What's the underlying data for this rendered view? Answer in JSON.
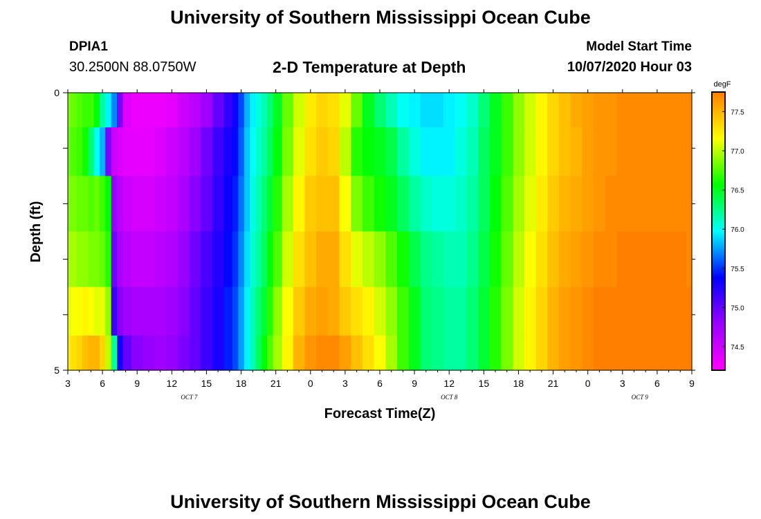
{
  "header": {
    "title": "University of Southern Mississippi Ocean Cube",
    "station": "DPIA1",
    "coords": "30.2500N 88.0750W",
    "subtitle": "2-D Temperature at Depth",
    "model_start_label": "Model Start Time",
    "model_start_value": "10/07/2020 Hour 03"
  },
  "footer": {
    "title": "University of Southern Mississippi Ocean Cube"
  },
  "chart_data": {
    "type": "heatmap",
    "title": "2-D Temperature at Depth",
    "xlabel": "Forecast Time(Z)",
    "ylabel": "Depth (ft)",
    "x_hours_range": [
      0,
      54
    ],
    "x_tick_labels": [
      "3",
      "6",
      "9",
      "12",
      "15",
      "18",
      "21",
      "0",
      "3",
      "6",
      "9",
      "12",
      "15",
      "18",
      "21",
      "0",
      "3",
      "6",
      "9"
    ],
    "day_labels": [
      {
        "label": "OCT 7",
        "hour": 10.5
      },
      {
        "label": "OCT 8",
        "hour": 33
      },
      {
        "label": "OCT 9",
        "hour": 49.5
      }
    ],
    "y_tick_labels": [
      {
        "depth": 0,
        "label": "0"
      },
      {
        "depth": 1,
        "label": ""
      },
      {
        "depth": 2,
        "label": ""
      },
      {
        "depth": 3,
        "label": ""
      },
      {
        "depth": 4,
        "label": ""
      },
      {
        "depth": 5,
        "label": "5"
      }
    ],
    "ylim": [
      0,
      5
    ],
    "colorbar": {
      "unit": "degF",
      "min": 74.2,
      "max": 77.75,
      "ticks": [
        "74.5",
        "75.0",
        "75.5",
        "76.0",
        "76.5",
        "77.0",
        "77.5"
      ],
      "colors": [
        "#ff00ff",
        "#9900ff",
        "#0000ff",
        "#00ffff",
        "#00ff00",
        "#ffff00",
        "#ff7f00"
      ]
    },
    "x_hours": [
      0,
      0.5,
      1,
      1.5,
      2,
      2.5,
      3,
      3.5,
      4,
      4.5,
      5,
      6,
      7,
      8,
      9,
      10,
      11,
      12,
      13,
      14,
      14.5,
      15,
      15.5,
      16,
      16.5,
      17,
      17.5,
      18,
      19,
      20,
      21,
      22,
      23,
      24,
      25,
      26,
      27,
      28,
      29,
      30,
      31,
      32,
      33,
      34,
      35,
      36,
      37,
      38,
      39,
      40,
      41,
      42,
      43,
      44,
      45,
      46,
      47,
      48,
      49,
      50,
      51,
      52,
      53,
      54
    ],
    "depth_layers": [
      {
        "depth": 0.25,
        "values": [
          76.85,
          76.8,
          76.75,
          76.7,
          76.7,
          76.55,
          76.2,
          75.95,
          75.7,
          74.9,
          74.4,
          74.3,
          74.3,
          74.3,
          74.35,
          74.5,
          74.6,
          74.75,
          75.0,
          75.2,
          75.35,
          75.55,
          75.8,
          75.95,
          76.05,
          76.15,
          76.3,
          76.5,
          76.8,
          77.05,
          77.25,
          77.35,
          77.3,
          77.1,
          76.8,
          76.5,
          76.3,
          76.15,
          76.0,
          75.95,
          75.9,
          75.9,
          75.95,
          76.0,
          76.1,
          76.3,
          76.5,
          76.7,
          76.9,
          77.05,
          77.2,
          77.35,
          77.45,
          77.55,
          77.6,
          77.65,
          77.65,
          77.7,
          77.7,
          77.7,
          77.7,
          77.7,
          77.7,
          77.7
        ]
      },
      {
        "depth": 1.0,
        "values": [
          76.8,
          76.75,
          76.7,
          76.6,
          76.3,
          76.0,
          75.8,
          74.9,
          74.5,
          74.4,
          74.35,
          74.35,
          74.35,
          74.4,
          74.5,
          74.6,
          74.75,
          74.95,
          75.15,
          75.3,
          75.4,
          75.6,
          75.85,
          76.0,
          76.1,
          76.2,
          76.35,
          76.55,
          76.85,
          77.1,
          77.3,
          77.4,
          77.35,
          77.0,
          76.65,
          76.55,
          76.5,
          76.4,
          76.2,
          76.05,
          75.95,
          75.95,
          75.95,
          76.05,
          76.15,
          76.35,
          76.5,
          76.7,
          76.9,
          77.05,
          77.2,
          77.35,
          77.45,
          77.5,
          77.6,
          77.65,
          77.65,
          77.7,
          77.7,
          77.7,
          77.7,
          77.7,
          77.7,
          77.7
        ]
      },
      {
        "depth": 2.0,
        "values": [
          76.85,
          76.85,
          76.8,
          76.8,
          76.75,
          76.8,
          76.7,
          76.55,
          74.8,
          74.6,
          74.5,
          74.45,
          74.45,
          74.5,
          74.55,
          74.7,
          74.85,
          75.0,
          75.2,
          75.35,
          75.45,
          75.65,
          75.85,
          76.05,
          76.15,
          76.3,
          76.45,
          76.65,
          76.95,
          77.2,
          77.4,
          77.45,
          77.45,
          77.15,
          76.85,
          76.7,
          76.6,
          76.5,
          76.35,
          76.2,
          76.1,
          76.05,
          76.05,
          76.1,
          76.2,
          76.35,
          76.55,
          76.75,
          76.95,
          77.1,
          77.25,
          77.4,
          77.5,
          77.55,
          77.6,
          77.65,
          77.7,
          77.7,
          77.7,
          77.7,
          77.7,
          77.7,
          77.7,
          77.7
        ]
      },
      {
        "depth": 3.0,
        "values": [
          76.95,
          76.95,
          76.9,
          76.9,
          76.85,
          76.85,
          76.8,
          76.65,
          74.95,
          74.7,
          74.6,
          74.55,
          74.55,
          74.6,
          74.65,
          74.8,
          74.95,
          75.1,
          75.25,
          75.4,
          75.5,
          75.7,
          75.9,
          76.1,
          76.2,
          76.35,
          76.55,
          76.75,
          77.05,
          77.3,
          77.45,
          77.55,
          77.55,
          77.3,
          77.1,
          77.0,
          76.9,
          76.75,
          76.6,
          76.4,
          76.25,
          76.2,
          76.15,
          76.15,
          76.25,
          76.4,
          76.6,
          76.8,
          77.0,
          77.15,
          77.3,
          77.45,
          77.55,
          77.6,
          77.65,
          77.7,
          77.7,
          77.75,
          77.75,
          77.8,
          77.8,
          77.8,
          77.75,
          77.7
        ]
      },
      {
        "depth": 4.0,
        "values": [
          77.1,
          77.15,
          77.15,
          77.2,
          77.15,
          77.1,
          77.1,
          76.9,
          75.15,
          74.85,
          74.75,
          74.7,
          74.7,
          74.7,
          74.75,
          74.85,
          75.0,
          75.15,
          75.3,
          75.45,
          75.55,
          75.75,
          75.95,
          76.15,
          76.3,
          76.45,
          76.65,
          76.9,
          77.15,
          77.4,
          77.55,
          77.6,
          77.55,
          77.4,
          77.3,
          77.2,
          77.05,
          76.9,
          76.7,
          76.5,
          76.3,
          76.25,
          76.2,
          76.2,
          76.3,
          76.45,
          76.65,
          76.85,
          77.05,
          77.2,
          77.35,
          77.5,
          77.6,
          77.65,
          77.7,
          77.75,
          77.75,
          77.8,
          77.85,
          77.9,
          77.9,
          77.9,
          77.85,
          77.75
        ]
      },
      {
        "depth": 4.75,
        "values": [
          77.25,
          77.3,
          77.35,
          77.45,
          77.5,
          77.5,
          77.35,
          77.0,
          76.2,
          75.3,
          75.0,
          74.85,
          74.8,
          74.75,
          74.8,
          74.9,
          75.0,
          75.15,
          75.3,
          75.45,
          75.55,
          75.75,
          75.95,
          76.15,
          76.35,
          76.55,
          76.75,
          76.95,
          77.2,
          77.5,
          77.65,
          77.7,
          77.7,
          77.6,
          77.45,
          77.3,
          77.15,
          76.95,
          76.7,
          76.5,
          76.3,
          76.25,
          76.2,
          76.2,
          76.3,
          76.45,
          76.65,
          76.85,
          77.05,
          77.2,
          77.35,
          77.5,
          77.6,
          77.65,
          77.7,
          77.75,
          77.8,
          77.85,
          77.9,
          77.9,
          77.9,
          77.9,
          77.85,
          77.75
        ]
      }
    ],
    "grid": false,
    "legend": "right"
  }
}
